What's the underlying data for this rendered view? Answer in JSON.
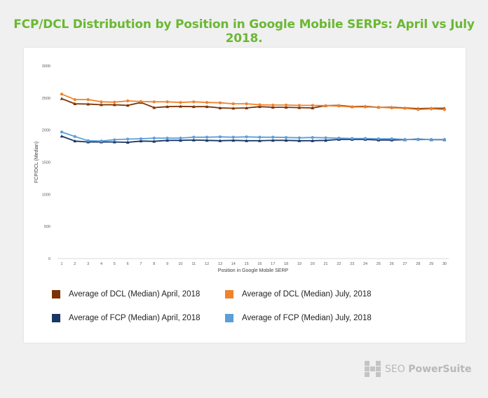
{
  "title": "FCP/DCL Distribution by Position in Google Mobile SERPs: April vs July 2018.",
  "brand": {
    "prefix": "SEO ",
    "bold": "PowerSuite"
  },
  "chart_data": {
    "type": "line",
    "title": "",
    "xlabel": "Position in Google Mobile SERP",
    "ylabel": "FCP/DCL (Median)",
    "ylim": [
      0,
      3000
    ],
    "yticks": [
      "0",
      "500",
      "1000",
      "1500",
      "2000",
      "2500",
      "3000"
    ],
    "x": [
      1,
      2,
      3,
      4,
      5,
      6,
      7,
      8,
      9,
      10,
      11,
      12,
      13,
      14,
      15,
      16,
      17,
      18,
      19,
      20,
      21,
      22,
      23,
      24,
      25,
      26,
      27,
      28,
      29,
      30
    ],
    "grid": false,
    "legend_position": "bottom",
    "series": [
      {
        "name": "Average of DCL (Median) April, 2018",
        "color": "#7a3306",
        "marker": "triangle",
        "values": [
          2490,
          2410,
          2405,
          2395,
          2395,
          2385,
          2430,
          2350,
          2365,
          2370,
          2365,
          2365,
          2345,
          2340,
          2345,
          2365,
          2355,
          2355,
          2350,
          2345,
          2380,
          2385,
          2365,
          2370,
          2355,
          2355,
          2345,
          2335,
          2340,
          2340
        ]
      },
      {
        "name": "Average of DCL (Median) July, 2018",
        "color": "#f0822a",
        "marker": "circle",
        "values": [
          2560,
          2475,
          2475,
          2440,
          2435,
          2455,
          2445,
          2440,
          2440,
          2430,
          2440,
          2430,
          2425,
          2410,
          2410,
          2395,
          2390,
          2390,
          2385,
          2385,
          2380,
          2375,
          2360,
          2360,
          2355,
          2345,
          2340,
          2320,
          2330,
          2320
        ]
      },
      {
        "name": "Average of FCP (Median) April, 2018",
        "color": "#1b3664",
        "marker": "triangle",
        "values": [
          1905,
          1830,
          1815,
          1815,
          1815,
          1810,
          1830,
          1825,
          1840,
          1840,
          1845,
          1840,
          1835,
          1840,
          1835,
          1835,
          1840,
          1840,
          1835,
          1835,
          1840,
          1855,
          1855,
          1855,
          1845,
          1845,
          1850,
          1860,
          1850,
          1850
        ]
      },
      {
        "name": "Average of FCP (Median) July, 2018",
        "color": "#5b9ed9",
        "marker": "circle",
        "values": [
          1970,
          1900,
          1835,
          1830,
          1850,
          1860,
          1865,
          1875,
          1875,
          1875,
          1890,
          1890,
          1895,
          1890,
          1895,
          1890,
          1890,
          1885,
          1880,
          1885,
          1880,
          1875,
          1870,
          1870,
          1865,
          1865,
          1855,
          1850,
          1855,
          1855
        ]
      }
    ]
  }
}
